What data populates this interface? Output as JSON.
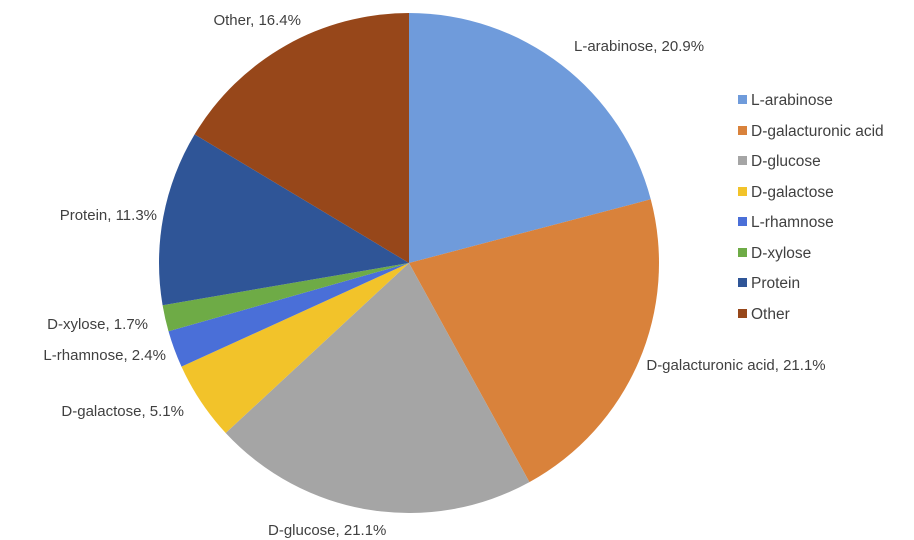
{
  "chart_data": {
    "type": "pie",
    "categories": [
      "L-arabinose",
      "D-galacturonic acid",
      "D-glucose",
      "D-galactose",
      "L-rhamnose",
      "D-xylose",
      "Protein",
      "Other"
    ],
    "values": [
      20.9,
      21.1,
      21.1,
      5.1,
      2.4,
      1.7,
      11.3,
      16.4
    ],
    "value_labels": [
      "L-arabinose, 20.9%",
      "D-galacturonic acid, 21.1%",
      "D-glucose, 21.1%",
      "D-galactose, 5.1%",
      "L-rhamnose, 2.4%",
      "D-xylose, 1.7%",
      "Protein, 11.3%",
      "Other, 16.4%"
    ],
    "colors": [
      "#6f9bdb",
      "#d9823b",
      "#a5a5a5",
      "#f2c32a",
      "#4a6fd8",
      "#6eab46",
      "#2f5597",
      "#97471a"
    ],
    "legend": "right"
  }
}
